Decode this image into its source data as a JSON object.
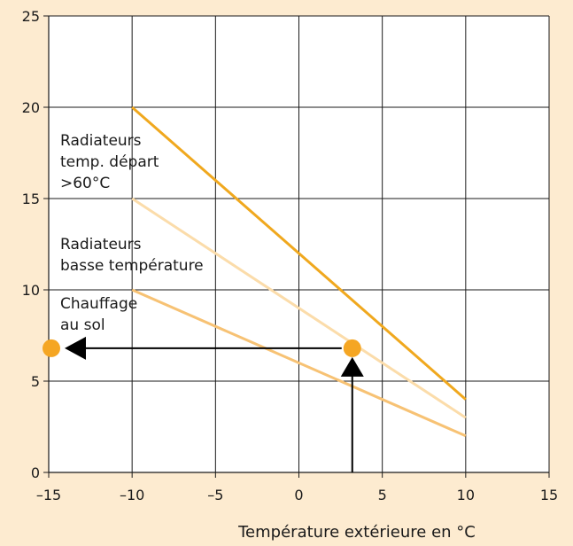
{
  "chart_data": {
    "type": "line",
    "title": "",
    "xlabel": "Température extérieure en °C",
    "ylabel": "",
    "xlim": [
      -15,
      15
    ],
    "ylim": [
      0,
      25
    ],
    "grid": true,
    "x_ticks": [
      -15,
      -10,
      -5,
      0,
      5,
      10,
      15
    ],
    "x_tick_labels": [
      "–15",
      "–10",
      "–5",
      "0",
      "5",
      "10",
      "15"
    ],
    "y_ticks": [
      0,
      5,
      10,
      15,
      20,
      25
    ],
    "y_tick_labels": [
      "0",
      "5",
      "10",
      "15",
      "20",
      "25"
    ],
    "series": [
      {
        "label_lines": [
          "Radiateurs",
          "temp. départ",
          ">60°C"
        ],
        "color": "#f0a81e",
        "x": [
          -10,
          10
        ],
        "y": [
          20,
          4
        ]
      },
      {
        "label_lines": [
          "Radiateurs",
          "basse température"
        ],
        "color": "#fbdcaa",
        "x": [
          -10,
          10
        ],
        "y": [
          15,
          3
        ]
      },
      {
        "label_lines": [
          "Chauffage",
          "au sol"
        ],
        "color": "#f7c274",
        "x": [
          -10,
          10
        ],
        "y": [
          10,
          2
        ]
      }
    ],
    "annotation": {
      "point": {
        "x": 3.2,
        "y": 6.8
      },
      "target_point": {
        "x": -15,
        "y": 6.8
      },
      "point_color": "#f5a623",
      "arrow_color": "#000000"
    }
  }
}
